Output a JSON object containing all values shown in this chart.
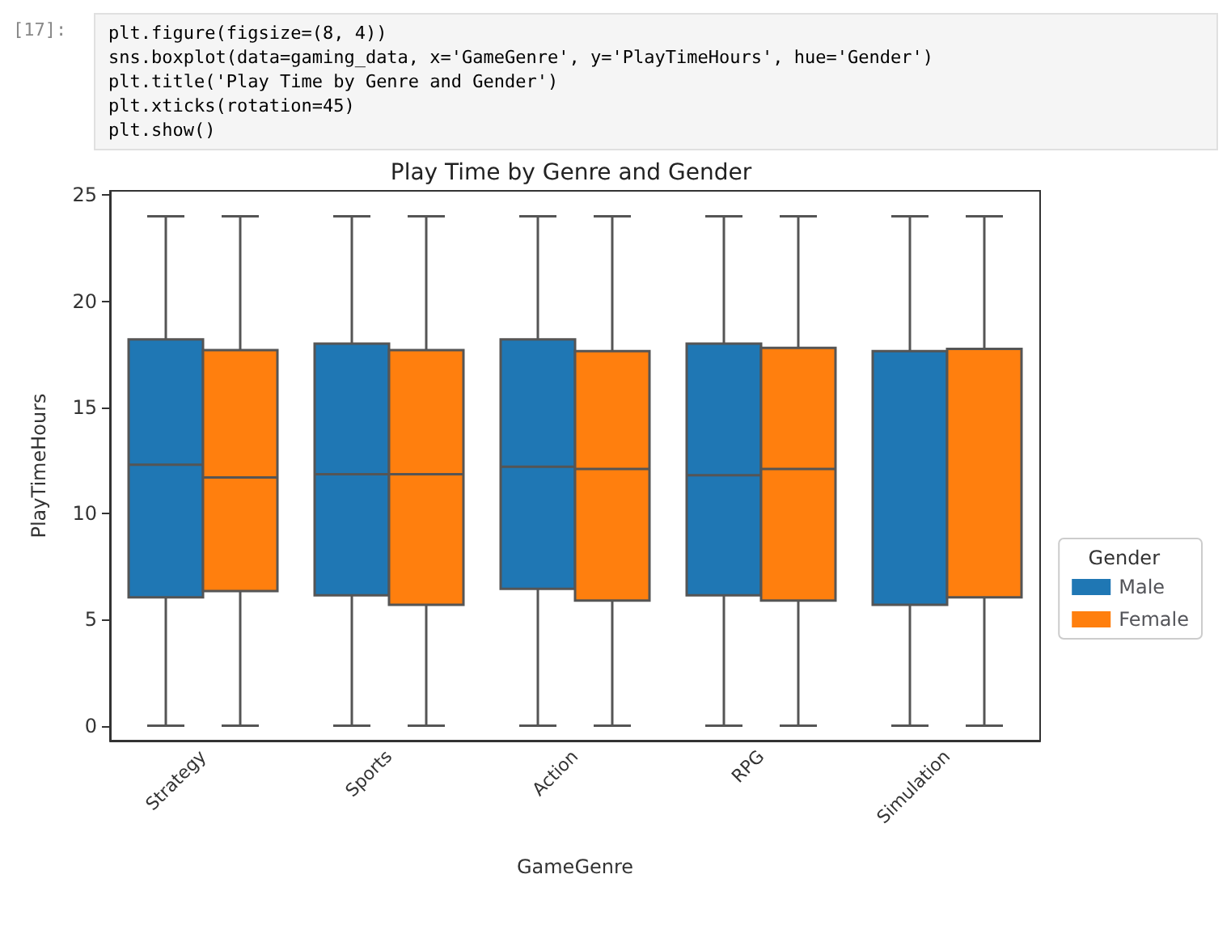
{
  "chart_data": {
    "type": "box",
    "title": "Play Time by Genre and Gender",
    "xlabel": "GameGenre",
    "ylabel": "PlayTimeHours",
    "legend_title": "Gender",
    "legend": "right",
    "grid": false,
    "annotations": [
      "[17]:",
      "plt.figure(figsize=(8, 4))",
      "sns.boxplot(data=gaming_data, x='GameGenre', y='PlayTimeHours', hue='Gender')",
      "plt.title('Play Time by Genre and Gender')",
      "plt.xticks(rotation=45)",
      "plt.show()"
    ],
    "categories": [
      "Strategy",
      "Sports",
      "Action",
      "RPG",
      "Simulation"
    ],
    "ylim": [
      -0.7,
      25.2
    ],
    "yticks": [
      0,
      5,
      10,
      15,
      20,
      25
    ],
    "series": [
      {
        "name": "Male",
        "color": "#1f77b4",
        "boxes": [
          {
            "low": 0,
            "q1": 6.05,
            "median": 12.3,
            "q3": 18.2,
            "high": 24
          },
          {
            "low": 0,
            "q1": 6.15,
            "median": 11.85,
            "q3": 18.0,
            "high": 24
          },
          {
            "low": 0,
            "q1": 6.45,
            "median": 12.2,
            "q3": 18.2,
            "high": 24
          },
          {
            "low": 0,
            "q1": 6.15,
            "median": 11.8,
            "q3": 18.0,
            "high": 24
          },
          {
            "low": 0,
            "q1": 5.7,
            "median": null,
            "q3": 17.65,
            "high": 24
          }
        ]
      },
      {
        "name": "Female",
        "color": "#ff7f0e",
        "boxes": [
          {
            "low": 0,
            "q1": 6.35,
            "median": 11.7,
            "q3": 17.7,
            "high": 24
          },
          {
            "low": 0,
            "q1": 5.7,
            "median": 11.85,
            "q3": 17.7,
            "high": 24
          },
          {
            "low": 0,
            "q1": 5.9,
            "median": 12.1,
            "q3": 17.65,
            "high": 24
          },
          {
            "low": 0,
            "q1": 5.9,
            "median": 12.1,
            "q3": 17.8,
            "high": 24
          },
          {
            "low": 0,
            "q1": 6.05,
            "median": null,
            "q3": 17.75,
            "high": 24
          }
        ]
      }
    ]
  }
}
